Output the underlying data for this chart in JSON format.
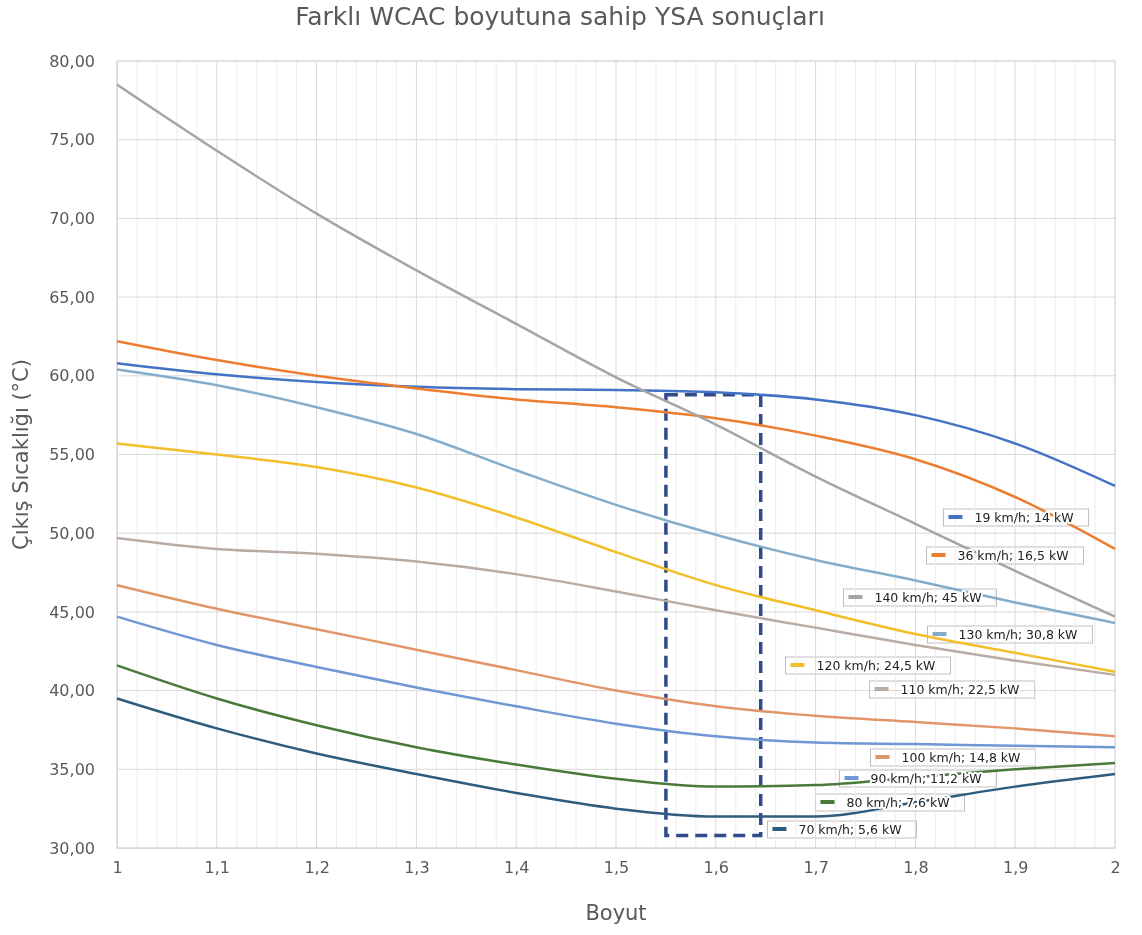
{
  "chart_data": {
    "type": "line",
    "title": "Farklı WCAC boyutuna sahip YSA sonuçları",
    "xlabel": "Boyut",
    "ylabel": "Çıkış Sıcaklığı (°C)",
    "x": [
      1,
      1.1,
      1.2,
      1.3,
      1.4,
      1.5,
      1.6,
      1.7,
      1.8,
      1.9,
      2
    ],
    "series": [
      {
        "name": "19 km/h; 14 kW",
        "color": "#4472c4",
        "values": [
          60.8,
          60.1,
          59.6,
          59.3,
          59.15,
          59.1,
          58.95,
          58.5,
          57.5,
          55.7,
          53.0
        ]
      },
      {
        "name": "36 km/h; 16,5 kW",
        "color": "#ed7d31",
        "values": [
          62.2,
          61.0,
          60.0,
          59.2,
          58.5,
          58.0,
          57.3,
          56.2,
          54.7,
          52.3,
          49.0
        ]
      },
      {
        "name": "140 km/h; 45 kW",
        "color": "#a5a5a5",
        "values": [
          78.5,
          74.3,
          70.3,
          66.7,
          63.3,
          59.9,
          56.9,
          53.6,
          50.6,
          47.6,
          44.7
        ]
      },
      {
        "name": "130 km/h; 30,8 kW",
        "color": "#84adcc",
        "values": [
          60.4,
          59.4,
          58.0,
          56.3,
          54.0,
          51.8,
          49.9,
          48.3,
          47.0,
          45.6,
          44.3
        ]
      },
      {
        "name": "120 km/h; 24,5 kW",
        "color": "#f2bf2a",
        "values": [
          55.7,
          55.0,
          54.2,
          52.9,
          51.0,
          48.8,
          46.7,
          45.1,
          43.6,
          42.4,
          41.2
        ]
      },
      {
        "name": "110 km/h; 22,5 kW",
        "color": "#b9aca4",
        "values": [
          49.7,
          49.0,
          48.7,
          48.2,
          47.4,
          46.3,
          45.1,
          44.0,
          42.9,
          41.9,
          41.0
        ]
      },
      {
        "name": "100 km/h; 14,8 kW",
        "color": "#e3956a",
        "values": [
          46.7,
          45.2,
          43.9,
          42.6,
          41.3,
          40.0,
          39.0,
          38.4,
          38.0,
          37.6,
          37.1
        ]
      },
      {
        "name": "90 km/h; 11,2 kW",
        "color": "#6e97d3",
        "values": [
          44.7,
          42.9,
          41.5,
          40.2,
          39.0,
          37.9,
          37.1,
          36.7,
          36.6,
          36.5,
          36.4
        ]
      },
      {
        "name": "80 km/h; 7,6 kW",
        "color": "#4a7a3a",
        "values": [
          41.6,
          39.5,
          37.8,
          36.4,
          35.3,
          34.4,
          33.9,
          34.0,
          34.5,
          35.0,
          35.4
        ]
      },
      {
        "name": "70 km/h; 5,6 kW",
        "color": "#2e5c7e",
        "values": [
          39.5,
          37.6,
          36.0,
          34.7,
          33.5,
          32.5,
          32.0,
          32.0,
          32.9,
          33.9,
          34.7
        ]
      }
    ],
    "xlim": [
      1,
      2
    ],
    "xticks": [
      {
        "value": 1,
        "label": "1"
      },
      {
        "value": 1.02,
        "label": null
      },
      {
        "value": 1.04,
        "label": null
      },
      {
        "value": 1.06,
        "label": null
      },
      {
        "value": 1.08,
        "label": null
      },
      {
        "value": 1.1,
        "label": "1,1"
      },
      {
        "value": 1.12,
        "label": null
      },
      {
        "value": 1.14,
        "label": null
      },
      {
        "value": 1.16,
        "label": null
      },
      {
        "value": 1.18,
        "label": null
      },
      {
        "value": 1.2,
        "label": "1,2"
      },
      {
        "value": 1.22,
        "label": null
      },
      {
        "value": 1.24,
        "label": null
      },
      {
        "value": 1.26,
        "label": null
      },
      {
        "value": 1.28,
        "label": null
      },
      {
        "value": 1.3,
        "label": "1,3"
      },
      {
        "value": 1.32,
        "label": null
      },
      {
        "value": 1.34,
        "label": null
      },
      {
        "value": 1.36,
        "label": null
      },
      {
        "value": 1.38,
        "label": null
      },
      {
        "value": 1.4,
        "label": "1,4"
      },
      {
        "value": 1.42,
        "label": null
      },
      {
        "value": 1.44,
        "label": null
      },
      {
        "value": 1.46,
        "label": null
      },
      {
        "value": 1.48,
        "label": null
      },
      {
        "value": 1.5,
        "label": "1,5"
      },
      {
        "value": 1.52,
        "label": null
      },
      {
        "value": 1.54,
        "label": null
      },
      {
        "value": 1.56,
        "label": null
      },
      {
        "value": 1.58,
        "label": null
      },
      {
        "value": 1.6,
        "label": "1,6"
      },
      {
        "value": 1.62,
        "label": null
      },
      {
        "value": 1.64,
        "label": null
      },
      {
        "value": 1.66,
        "label": null
      },
      {
        "value": 1.68,
        "label": null
      },
      {
        "value": 1.7,
        "label": "1,7"
      },
      {
        "value": 1.72,
        "label": null
      },
      {
        "value": 1.74,
        "label": null
      },
      {
        "value": 1.76,
        "label": null
      },
      {
        "value": 1.78,
        "label": null
      },
      {
        "value": 1.8,
        "label": "1,8"
      },
      {
        "value": 1.82,
        "label": null
      },
      {
        "value": 1.84,
        "label": null
      },
      {
        "value": 1.86,
        "label": null
      },
      {
        "value": 1.88,
        "label": null
      },
      {
        "value": 1.9,
        "label": "1,9"
      },
      {
        "value": 1.92,
        "label": null
      },
      {
        "value": 1.94,
        "label": null
      },
      {
        "value": 1.96,
        "label": null
      },
      {
        "value": 1.98,
        "label": null
      },
      {
        "value": 2,
        "label": "2"
      }
    ],
    "ylim": [
      30,
      80
    ],
    "yticks": [
      {
        "value": 30,
        "label": "30,00"
      },
      {
        "value": 35,
        "label": "35,00"
      },
      {
        "value": 40,
        "label": "40,00"
      },
      {
        "value": 45,
        "label": "45,00"
      },
      {
        "value": 50,
        "label": "50,00"
      },
      {
        "value": 55,
        "label": "55,00"
      },
      {
        "value": 60,
        "label": "60,00"
      },
      {
        "value": 65,
        "label": "65,00"
      },
      {
        "value": 70,
        "label": "70,00"
      },
      {
        "value": 75,
        "label": "75,00"
      },
      {
        "value": 80,
        "label": "80,00"
      }
    ],
    "grid": true,
    "legend": "bottom right",
    "marker": "none",
    "line_style": "solid"
  }
}
